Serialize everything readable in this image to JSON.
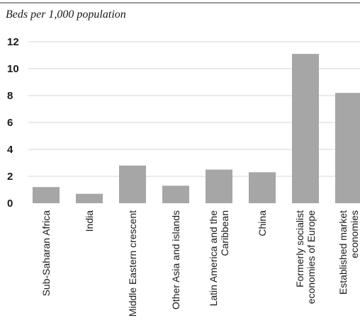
{
  "chart_data": {
    "type": "bar",
    "ylabel": "Beds per 1,000 population",
    "categories": [
      [
        "Sub-Saharan Africa"
      ],
      [
        "India"
      ],
      [
        "Middle Eastern crescent"
      ],
      [
        "Other Asia and islands"
      ],
      [
        "Latin America and the",
        "Caribbean"
      ],
      [
        "China"
      ],
      [
        "Formerly socialist",
        "economies of Europe"
      ],
      [
        "Established market",
        "economies"
      ]
    ],
    "values": [
      1.2,
      0.7,
      2.8,
      1.3,
      2.5,
      2.3,
      11.1,
      8.2
    ],
    "ylim": [
      0,
      12
    ],
    "yticks": [
      0,
      2,
      4,
      6,
      8,
      10,
      12
    ],
    "grid": true,
    "bar_color": "#a6a6a6"
  }
}
